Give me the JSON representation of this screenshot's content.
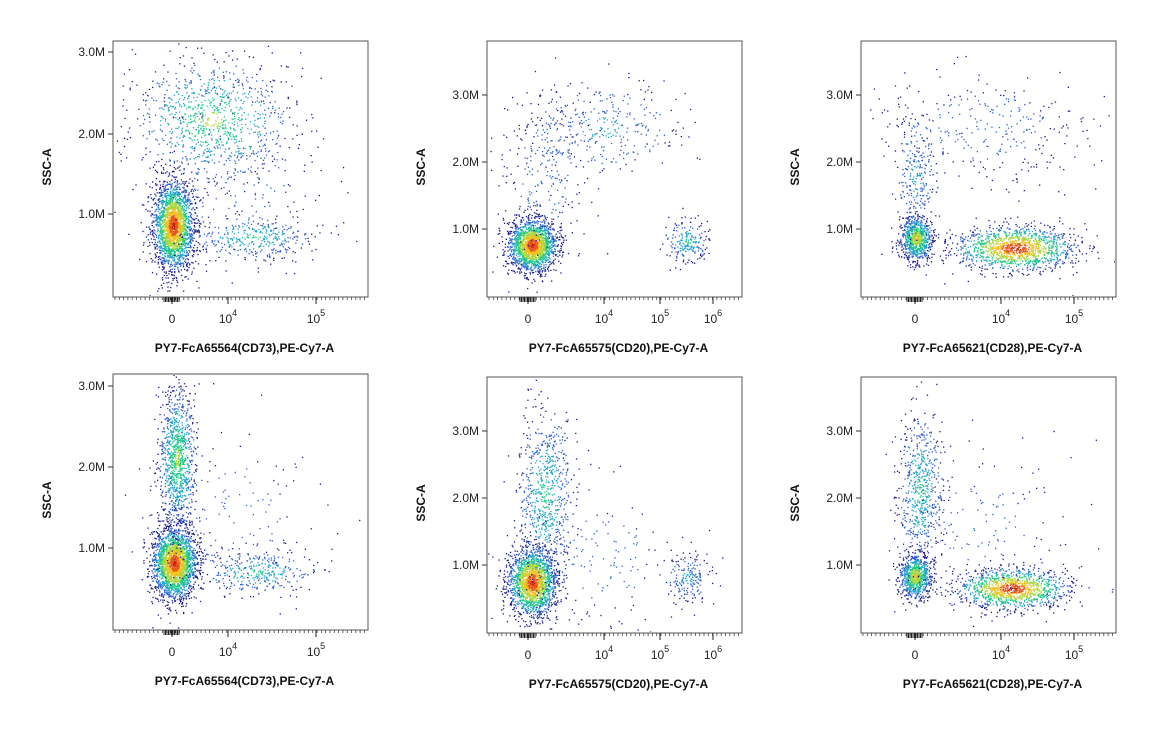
{
  "figure": {
    "panels": [
      {
        "x_label": "PY7-FcA65564(CD73),PE-Cy7-A",
        "y_label": "SSC-A",
        "y_ticks": [
          "1.0M",
          "2.0M",
          "3.0M"
        ],
        "x_ticks": [
          {
            "base": "0",
            "exp": ""
          },
          {
            "base": "10",
            "exp": "4"
          },
          {
            "base": "10",
            "exp": "5"
          }
        ]
      },
      {
        "x_label": "PY7-FcA65575(CD20),PE-Cy7-A",
        "y_label": "SSC-A",
        "y_ticks": [
          "1.0M",
          "2.0M",
          "3.0M"
        ],
        "x_ticks": [
          {
            "base": "0",
            "exp": ""
          },
          {
            "base": "10",
            "exp": "4"
          },
          {
            "base": "10",
            "exp": "5"
          },
          {
            "base": "10",
            "exp": "6"
          }
        ]
      },
      {
        "x_label": "PY7-FcA65621(CD28),PE-Cy7-A",
        "y_label": "SSC-A",
        "y_ticks": [
          "1.0M",
          "2.0M",
          "3.0M"
        ],
        "x_ticks": [
          {
            "base": "0",
            "exp": ""
          },
          {
            "base": "10",
            "exp": "4"
          },
          {
            "base": "10",
            "exp": "5"
          }
        ]
      },
      {
        "x_label": "PY7-FcA65564(CD73),PE-Cy7-A",
        "y_label": "SSC-A",
        "y_ticks": [
          "1.0M",
          "2.0M",
          "3.0M"
        ],
        "x_ticks": [
          {
            "base": "0",
            "exp": ""
          },
          {
            "base": "10",
            "exp": "4"
          },
          {
            "base": "10",
            "exp": "5"
          }
        ]
      },
      {
        "x_label": "PY7-FcA65575(CD20),PE-Cy7-A",
        "y_label": "SSC-A",
        "y_ticks": [
          "1.0M",
          "2.0M",
          "3.0M"
        ],
        "x_ticks": [
          {
            "base": "0",
            "exp": ""
          },
          {
            "base": "10",
            "exp": "4"
          },
          {
            "base": "10",
            "exp": "5"
          },
          {
            "base": "10",
            "exp": "6"
          }
        ]
      },
      {
        "x_label": "PY7-FcA65621(CD28),PE-Cy7-A",
        "y_label": "SSC-A",
        "y_ticks": [
          "1.0M",
          "2.0M",
          "3.0M"
        ],
        "x_ticks": [
          {
            "base": "0",
            "exp": ""
          },
          {
            "base": "10",
            "exp": "4"
          },
          {
            "base": "10",
            "exp": "5"
          }
        ]
      }
    ]
  },
  "colors": {
    "density_scale": [
      "#1b1b8c",
      "#2f5fd0",
      "#1ea3c8",
      "#22c88a",
      "#a6d83a",
      "#f0c020",
      "#e8561a",
      "#c81e10"
    ]
  },
  "chart_data": [
    {
      "type": "scatter",
      "density": true,
      "xlabel": "PY7-FcA65564(CD73),PE-Cy7-A",
      "ylabel": "SSC-A",
      "x_scale": "biexponential",
      "xlim": [
        -3000,
        400000
      ],
      "ylim": [
        0,
        3200000
      ],
      "x_ticks": [
        "0",
        "10^4",
        "10^5"
      ],
      "y_ticks": [
        "1.0M",
        "2.0M",
        "3.0M"
      ],
      "populations": [
        {
          "x_center": 0,
          "y_center": 800000,
          "relative_density": "highest"
        },
        {
          "x_center": 5000,
          "y_center": 2200000,
          "relative_density": "medium"
        },
        {
          "x_center": 20000,
          "y_center": 700000,
          "relative_density": "low"
        }
      ]
    },
    {
      "type": "scatter",
      "density": true,
      "xlabel": "PY7-FcA65575(CD20),PE-Cy7-A",
      "ylabel": "SSC-A",
      "x_scale": "biexponential",
      "xlim": [
        -3000,
        3000000
      ],
      "ylim": [
        0,
        3800000
      ],
      "x_ticks": [
        "0",
        "10^4",
        "10^5",
        "10^6"
      ],
      "y_ticks": [
        "1.0M",
        "2.0M",
        "3.0M"
      ],
      "populations": [
        {
          "x_center": 0,
          "y_center": 650000,
          "relative_density": "highest"
        },
        {
          "x_center": 15000,
          "y_center": 2500000,
          "relative_density": "low"
        },
        {
          "x_center": 400000,
          "y_center": 750000,
          "relative_density": "low"
        }
      ]
    },
    {
      "type": "scatter",
      "density": true,
      "xlabel": "PY7-FcA65621(CD28),PE-Cy7-A",
      "ylabel": "SSC-A",
      "x_scale": "biexponential",
      "xlim": [
        -3000,
        400000
      ],
      "ylim": [
        0,
        3800000
      ],
      "x_ticks": [
        "0",
        "10^4",
        "10^5"
      ],
      "y_ticks": [
        "1.0M",
        "2.0M",
        "3.0M"
      ],
      "populations": [
        {
          "x_center": 0,
          "y_center": 800000,
          "relative_density": "high"
        },
        {
          "x_center": 15000,
          "y_center": 600000,
          "relative_density": "highest"
        },
        {
          "x_center": 10000,
          "y_center": 2400000,
          "relative_density": "low"
        }
      ]
    },
    {
      "type": "scatter",
      "density": true,
      "xlabel": "PY7-FcA65564(CD73),PE-Cy7-A",
      "ylabel": "SSC-A",
      "x_scale": "biexponential",
      "xlim": [
        -3000,
        400000
      ],
      "ylim": [
        0,
        3200000
      ],
      "x_ticks": [
        "0",
        "10^4",
        "10^5"
      ],
      "y_ticks": [
        "1.0M",
        "2.0M",
        "3.0M"
      ],
      "populations": [
        {
          "x_center": 0,
          "y_center": 800000,
          "relative_density": "highest"
        },
        {
          "x_center": 0,
          "y_center": 2100000,
          "relative_density": "medium"
        },
        {
          "x_center": 20000,
          "y_center": 650000,
          "relative_density": "low"
        }
      ]
    },
    {
      "type": "scatter",
      "density": true,
      "xlabel": "PY7-FcA65575(CD20),PE-Cy7-A",
      "ylabel": "SSC-A",
      "x_scale": "biexponential",
      "xlim": [
        -3000,
        3000000
      ],
      "ylim": [
        0,
        3800000
      ],
      "x_ticks": [
        "0",
        "10^4",
        "10^5",
        "10^6"
      ],
      "y_ticks": [
        "1.0M",
        "2.0M",
        "3.0M"
      ],
      "populations": [
        {
          "x_center": 0,
          "y_center": 700000,
          "relative_density": "highest"
        },
        {
          "x_center": 500,
          "y_center": 2100000,
          "relative_density": "low"
        },
        {
          "x_center": 350000,
          "y_center": 700000,
          "relative_density": "low"
        }
      ]
    },
    {
      "type": "scatter",
      "density": true,
      "xlabel": "PY7-FcA65621(CD28),PE-Cy7-A",
      "ylabel": "SSC-A",
      "x_scale": "biexponential",
      "xlim": [
        -3000,
        400000
      ],
      "ylim": [
        0,
        3800000
      ],
      "x_ticks": [
        "0",
        "10^4",
        "10^5"
      ],
      "y_ticks": [
        "1.0M",
        "2.0M",
        "3.0M"
      ],
      "populations": [
        {
          "x_center": 0,
          "y_center": 800000,
          "relative_density": "high"
        },
        {
          "x_center": 0,
          "y_center": 2100000,
          "relative_density": "medium"
        },
        {
          "x_center": 15000,
          "y_center": 600000,
          "relative_density": "highest"
        }
      ]
    }
  ]
}
